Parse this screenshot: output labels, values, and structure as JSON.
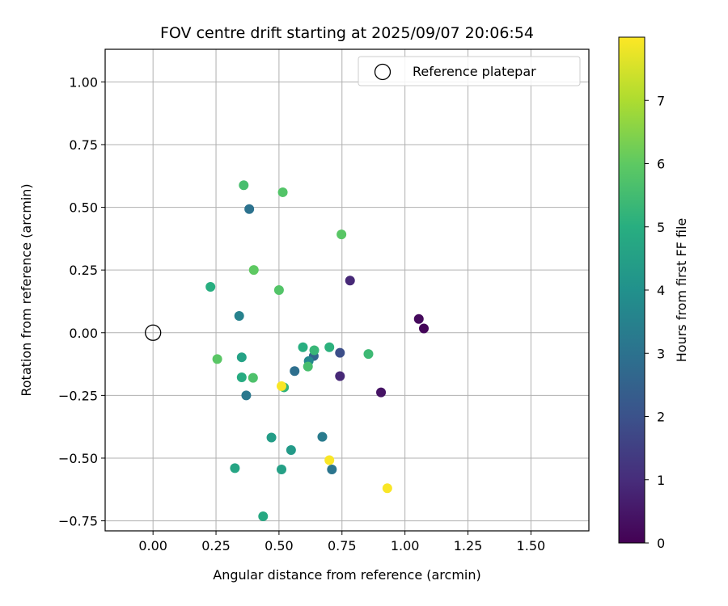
{
  "chart_data": {
    "type": "scatter",
    "title": "FOV centre drift starting at 2025/09/07 20:06:54",
    "xlabel": "Angular distance from reference (arcmin)",
    "ylabel": "Rotation from reference (arcmin)",
    "xlim": [
      -0.19,
      1.73
    ],
    "ylim": [
      -0.79,
      1.13
    ],
    "xticks": [
      0.0,
      0.25,
      0.5,
      0.75,
      1.0,
      1.25,
      1.5
    ],
    "xtick_labels": [
      "0.00",
      "0.25",
      "0.50",
      "0.75",
      "1.00",
      "1.25",
      "1.50"
    ],
    "yticks": [
      -0.75,
      -0.5,
      -0.25,
      0.0,
      0.25,
      0.5,
      0.75,
      1.0
    ],
    "ytick_labels": [
      "−0.75",
      "−0.50",
      "−0.25",
      "0.00",
      "0.25",
      "0.50",
      "0.75",
      "1.00"
    ],
    "grid": true,
    "legend": {
      "placement": "top-right",
      "entries": [
        {
          "label": "Reference platepar",
          "marker": "open-circle"
        }
      ]
    },
    "reference_point": {
      "x": 0.0,
      "y": 0.0
    },
    "colorbar": {
      "label": "Hours from first FF file",
      "colormap": "viridis",
      "range": [
        0,
        8
      ],
      "ticks": [
        0,
        1,
        2,
        3,
        4,
        5,
        6,
        7
      ],
      "tick_labels": [
        "0",
        "1",
        "2",
        "3",
        "4",
        "5",
        "6",
        "7"
      ]
    },
    "points": [
      {
        "x": 1.075,
        "y": 0.017,
        "c": 0.1
      },
      {
        "x": 1.055,
        "y": 0.055,
        "c": 0.2
      },
      {
        "x": 0.905,
        "y": -0.238,
        "c": 0.4
      },
      {
        "x": 0.782,
        "y": 0.208,
        "c": 0.9
      },
      {
        "x": 0.742,
        "y": -0.173,
        "c": 0.9
      },
      {
        "x": 0.742,
        "y": -0.08,
        "c": 1.9
      },
      {
        "x": 0.638,
        "y": -0.093,
        "c": 2.6
      },
      {
        "x": 0.562,
        "y": -0.153,
        "c": 2.9
      },
      {
        "x": 0.382,
        "y": 0.493,
        "c": 3.0
      },
      {
        "x": 0.71,
        "y": -0.545,
        "c": 3.1
      },
      {
        "x": 0.37,
        "y": -0.25,
        "c": 3.2
      },
      {
        "x": 0.672,
        "y": -0.415,
        "c": 3.3
      },
      {
        "x": 0.342,
        "y": 0.067,
        "c": 3.5
      },
      {
        "x": 0.618,
        "y": -0.113,
        "c": 3.7
      },
      {
        "x": 0.548,
        "y": -0.468,
        "c": 4.3
      },
      {
        "x": 0.47,
        "y": -0.418,
        "c": 4.4
      },
      {
        "x": 0.51,
        "y": -0.545,
        "c": 4.5
      },
      {
        "x": 0.352,
        "y": -0.098,
        "c": 4.6
      },
      {
        "x": 0.325,
        "y": -0.54,
        "c": 4.7
      },
      {
        "x": 0.437,
        "y": -0.732,
        "c": 4.8
      },
      {
        "x": 0.352,
        "y": -0.178,
        "c": 4.9
      },
      {
        "x": 0.228,
        "y": 0.183,
        "c": 5.0
      },
      {
        "x": 0.595,
        "y": -0.058,
        "c": 5.0
      },
      {
        "x": 0.7,
        "y": -0.058,
        "c": 5.1
      },
      {
        "x": 0.52,
        "y": -0.218,
        "c": 5.2
      },
      {
        "x": 0.64,
        "y": -0.07,
        "c": 5.3
      },
      {
        "x": 0.855,
        "y": -0.085,
        "c": 5.4
      },
      {
        "x": 0.615,
        "y": -0.135,
        "c": 5.6
      },
      {
        "x": 0.36,
        "y": 0.588,
        "c": 5.6
      },
      {
        "x": 0.397,
        "y": -0.18,
        "c": 5.7
      },
      {
        "x": 0.515,
        "y": 0.56,
        "c": 5.8
      },
      {
        "x": 0.5,
        "y": 0.17,
        "c": 5.8
      },
      {
        "x": 0.748,
        "y": 0.392,
        "c": 5.9
      },
      {
        "x": 0.255,
        "y": -0.105,
        "c": 5.9
      },
      {
        "x": 0.4,
        "y": 0.25,
        "c": 6.0
      },
      {
        "x": 0.51,
        "y": -0.213,
        "c": 7.95
      },
      {
        "x": 0.7,
        "y": -0.508,
        "c": 7.95
      },
      {
        "x": 0.93,
        "y": -0.62,
        "c": 7.95
      }
    ]
  }
}
